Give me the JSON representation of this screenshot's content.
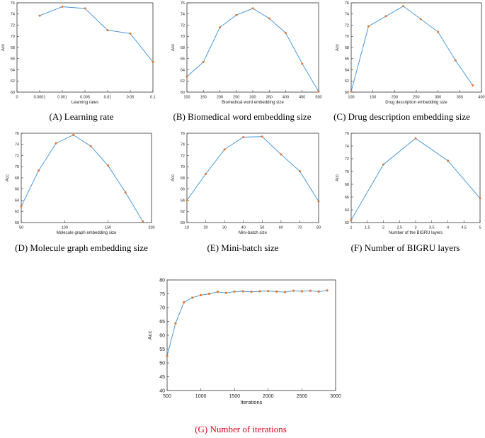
{
  "colors": {
    "line": "#3a8fd6",
    "marker": "#e8752b",
    "axis": "#333333",
    "caption_highlight": "#e0001b"
  },
  "chart_data": [
    {
      "id": "A",
      "type": "line",
      "caption": "(A) Learning rate",
      "xlabel": "Learning rates",
      "ylabel": "Acc",
      "xcategorical": true,
      "xticks": [
        "0",
        "0.0001",
        "0.001",
        "0.005",
        "0.01",
        "0.05",
        "0.1"
      ],
      "yticks": [
        "60",
        "62",
        "64",
        "66",
        "68",
        "70",
        "72",
        "74",
        "76"
      ],
      "ylim": [
        60,
        76
      ],
      "x": [
        1,
        2,
        3,
        4,
        5,
        6
      ],
      "y": [
        73.7,
        75.3,
        75.0,
        71.1,
        70.5,
        65.4
      ]
    },
    {
      "id": "B",
      "type": "line",
      "caption": "(B) Biomedical word embedding size",
      "xlabel": "Biomedical word embedding size",
      "ylabel": "Acc",
      "xlim": [
        100,
        500
      ],
      "xticks": [
        "100",
        "150",
        "200",
        "250",
        "300",
        "350",
        "400",
        "450",
        "500"
      ],
      "yticks": [
        "60",
        "62",
        "64",
        "66",
        "68",
        "70",
        "72",
        "74",
        "76"
      ],
      "ylim": [
        60,
        76
      ],
      "x": [
        100,
        150,
        200,
        250,
        300,
        350,
        400,
        450,
        500
      ],
      "y": [
        62.8,
        65.4,
        71.6,
        73.8,
        75.0,
        73.2,
        70.6,
        65.1,
        60.1
      ]
    },
    {
      "id": "C",
      "type": "line",
      "caption": "(C) Drug description embedding size",
      "xlabel": "Drug description embedding size",
      "ylabel": "Acc",
      "xlim": [
        100,
        400
      ],
      "xticks": [
        "100",
        "150",
        "200",
        "250",
        "300",
        "350",
        "400"
      ],
      "yticks": [
        "60",
        "62",
        "64",
        "66",
        "68",
        "70",
        "72",
        "74",
        "76"
      ],
      "ylim": [
        60,
        76
      ],
      "x": [
        100,
        140,
        180,
        220,
        260,
        300,
        340,
        380
      ],
      "y": [
        60.1,
        71.8,
        73.6,
        75.4,
        73.1,
        70.8,
        65.7,
        61.2
      ]
    },
    {
      "id": "D",
      "type": "line",
      "caption": "(D) Molecule graph embedding size",
      "xlabel": "Molecule graph embedding size",
      "ylabel": "Acc",
      "xlim": [
        50,
        200
      ],
      "xticks": [
        "50",
        "100",
        "150",
        "200"
      ],
      "yticks": [
        "60",
        "62",
        "64",
        "66",
        "68",
        "70",
        "72",
        "74",
        "76"
      ],
      "ylim": [
        60,
        76
      ],
      "x": [
        50,
        70,
        90,
        110,
        130,
        150,
        170,
        190
      ],
      "y": [
        62.9,
        69.3,
        74.2,
        75.7,
        73.7,
        70.2,
        65.4,
        60.2
      ]
    },
    {
      "id": "E",
      "type": "line",
      "caption": "(E) Mini-batch size",
      "xlabel": "Mini-batch size",
      "ylabel": "Acc",
      "xlim": [
        10,
        80
      ],
      "xticks": [
        "10",
        "20",
        "30",
        "40",
        "50",
        "60",
        "70",
        "80"
      ],
      "yticks": [
        "60",
        "62",
        "64",
        "66",
        "68",
        "70",
        "72",
        "74",
        "76"
      ],
      "ylim": [
        60,
        76
      ],
      "x": [
        10,
        20,
        30,
        40,
        50,
        60,
        70,
        80
      ],
      "y": [
        64.0,
        68.7,
        73.1,
        75.3,
        75.4,
        72.2,
        69.2,
        63.8
      ]
    },
    {
      "id": "F",
      "type": "line",
      "caption": "(F) Number of BIGRU layers",
      "xlabel": "Number of the BIGRU layers",
      "ylabel": "Acc",
      "xlim": [
        1,
        5
      ],
      "xticks": [
        "1",
        "1.5",
        "2",
        "2.5",
        "3",
        "3.5",
        "4",
        "4.5",
        "5"
      ],
      "yticks": [
        "62",
        "64",
        "66",
        "68",
        "70",
        "72",
        "74",
        "76"
      ],
      "ylim": [
        62,
        76
      ],
      "x": [
        1,
        2,
        3,
        4,
        5
      ],
      "y": [
        62.4,
        71.1,
        75.2,
        71.7,
        65.8
      ]
    },
    {
      "id": "G",
      "type": "line",
      "caption": "(G) Number of iterations",
      "xlabel": "Iterations",
      "ylabel": "Acc",
      "xlim": [
        500,
        3000
      ],
      "xticks": [
        "500",
        "1000",
        "1500",
        "2000",
        "2500",
        "3000"
      ],
      "yticks": [
        "40",
        "45",
        "50",
        "55",
        "60",
        "65",
        "70",
        "75",
        "80"
      ],
      "ylim": [
        40,
        80
      ],
      "x": [
        500,
        625,
        750,
        875,
        1000,
        1125,
        1250,
        1375,
        1500,
        1625,
        1750,
        1875,
        2000,
        2125,
        2250,
        2375,
        2500,
        2625,
        2750,
        2875
      ],
      "y": [
        52.5,
        64.3,
        71.9,
        73.6,
        74.5,
        75.0,
        75.7,
        75.3,
        75.8,
        75.9,
        75.7,
        75.9,
        76.0,
        75.8,
        75.6,
        76.1,
        75.9,
        76.1,
        75.8,
        76.2
      ]
    }
  ]
}
